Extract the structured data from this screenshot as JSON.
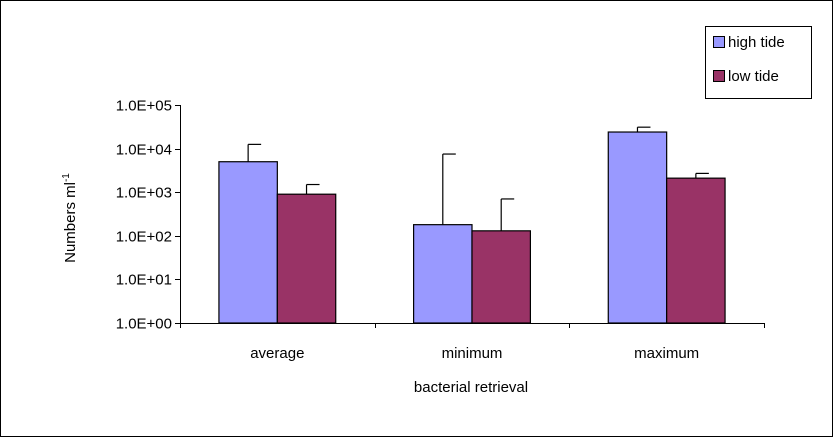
{
  "chart_data": {
    "type": "bar",
    "title": "",
    "xlabel": "bacterial retrieval",
    "ylabel": "Numbers ml",
    "ylabel_superscript": "-1",
    "yscale": "log",
    "ylim": [
      1,
      100000
    ],
    "y_ticks": [
      1,
      10,
      100,
      1000,
      10000,
      100000
    ],
    "y_tick_labels": [
      "1.0E+00",
      "1.0E+01",
      "1.0E+02",
      "1.0E+03",
      "1.0E+04",
      "1.0E+05"
    ],
    "categories": [
      "average",
      "minimum",
      "maximum"
    ],
    "series": [
      {
        "name": "high tide",
        "color": "#9999ff",
        "values": [
          5000,
          180,
          24000
        ],
        "error_upper": [
          12500,
          7500,
          31000
        ]
      },
      {
        "name": "low tide",
        "color": "#993366",
        "values": [
          900,
          130,
          2100
        ],
        "error_upper": [
          1500,
          700,
          2700
        ]
      }
    ],
    "grid": false,
    "legend_position": "top-right",
    "error_bars": "upper"
  }
}
